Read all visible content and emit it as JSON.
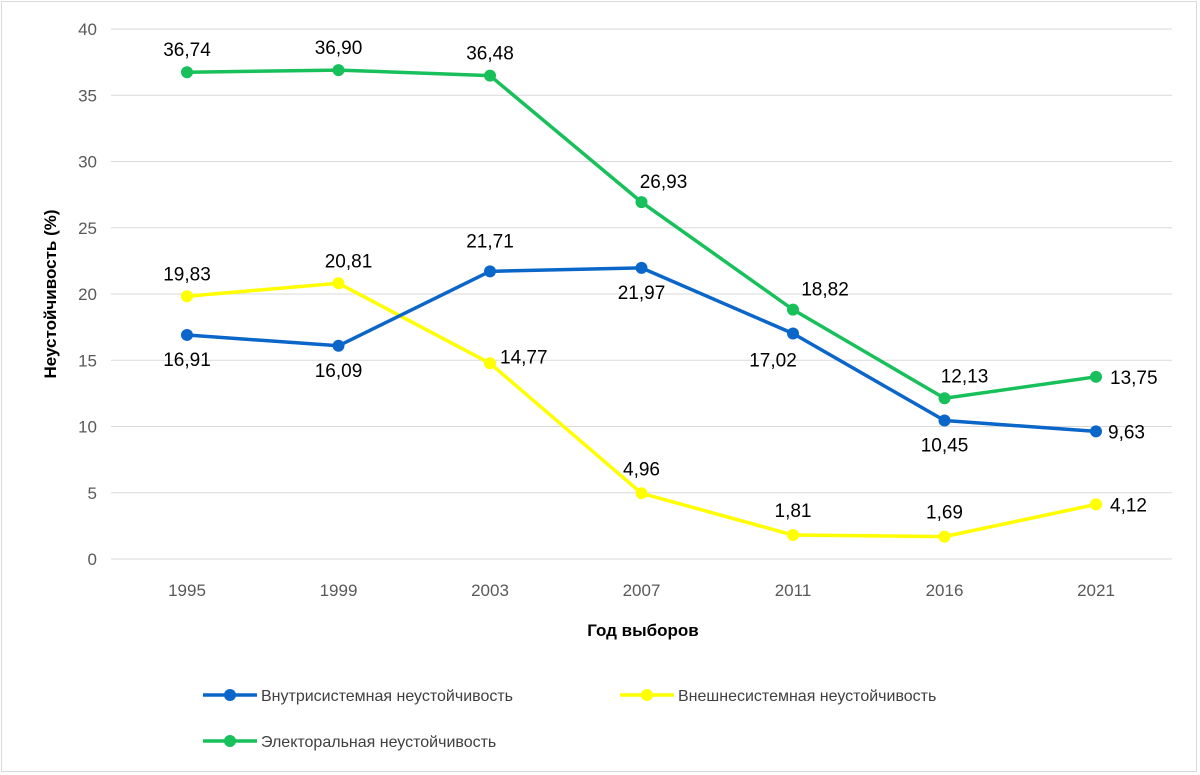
{
  "chart_data": {
    "type": "line",
    "title": "",
    "xlabel": "Год выборов",
    "ylabel": "Неустойчивость (%)",
    "categories": [
      "1995",
      "1999",
      "2003",
      "2007",
      "2011",
      "2016",
      "2021"
    ],
    "ylim": [
      0,
      40
    ],
    "yticks": [
      "0",
      "5",
      "10",
      "15",
      "20",
      "25",
      "30",
      "35",
      "40"
    ],
    "grid": true,
    "legend_position": "bottom",
    "series": [
      {
        "name": "Внутрисистемная неустойчивость",
        "color": "#0a66c8",
        "values": [
          16.91,
          16.09,
          21.71,
          21.97,
          17.02,
          10.45,
          9.63
        ],
        "labels": [
          "16,91",
          "16,09",
          "21,71",
          "21,97",
          "17,02",
          "10,45",
          "9,63"
        ]
      },
      {
        "name": "Внешнесистемная неустойчивость",
        "color": "#ffff00",
        "values": [
          19.83,
          20.81,
          14.77,
          4.96,
          1.81,
          1.69,
          4.12
        ],
        "labels": [
          "19,83",
          "20,81",
          "14,77",
          "4,96",
          "1,81",
          "1,69",
          "4,12"
        ]
      },
      {
        "name": "Электоральная неустойчивость",
        "color": "#17c05a",
        "values": [
          36.74,
          36.9,
          36.48,
          26.93,
          18.82,
          12.13,
          13.75
        ],
        "labels": [
          "36,74",
          "36,90",
          "36,48",
          "26,93",
          "18,82",
          "12,13",
          "13,75"
        ]
      }
    ]
  }
}
